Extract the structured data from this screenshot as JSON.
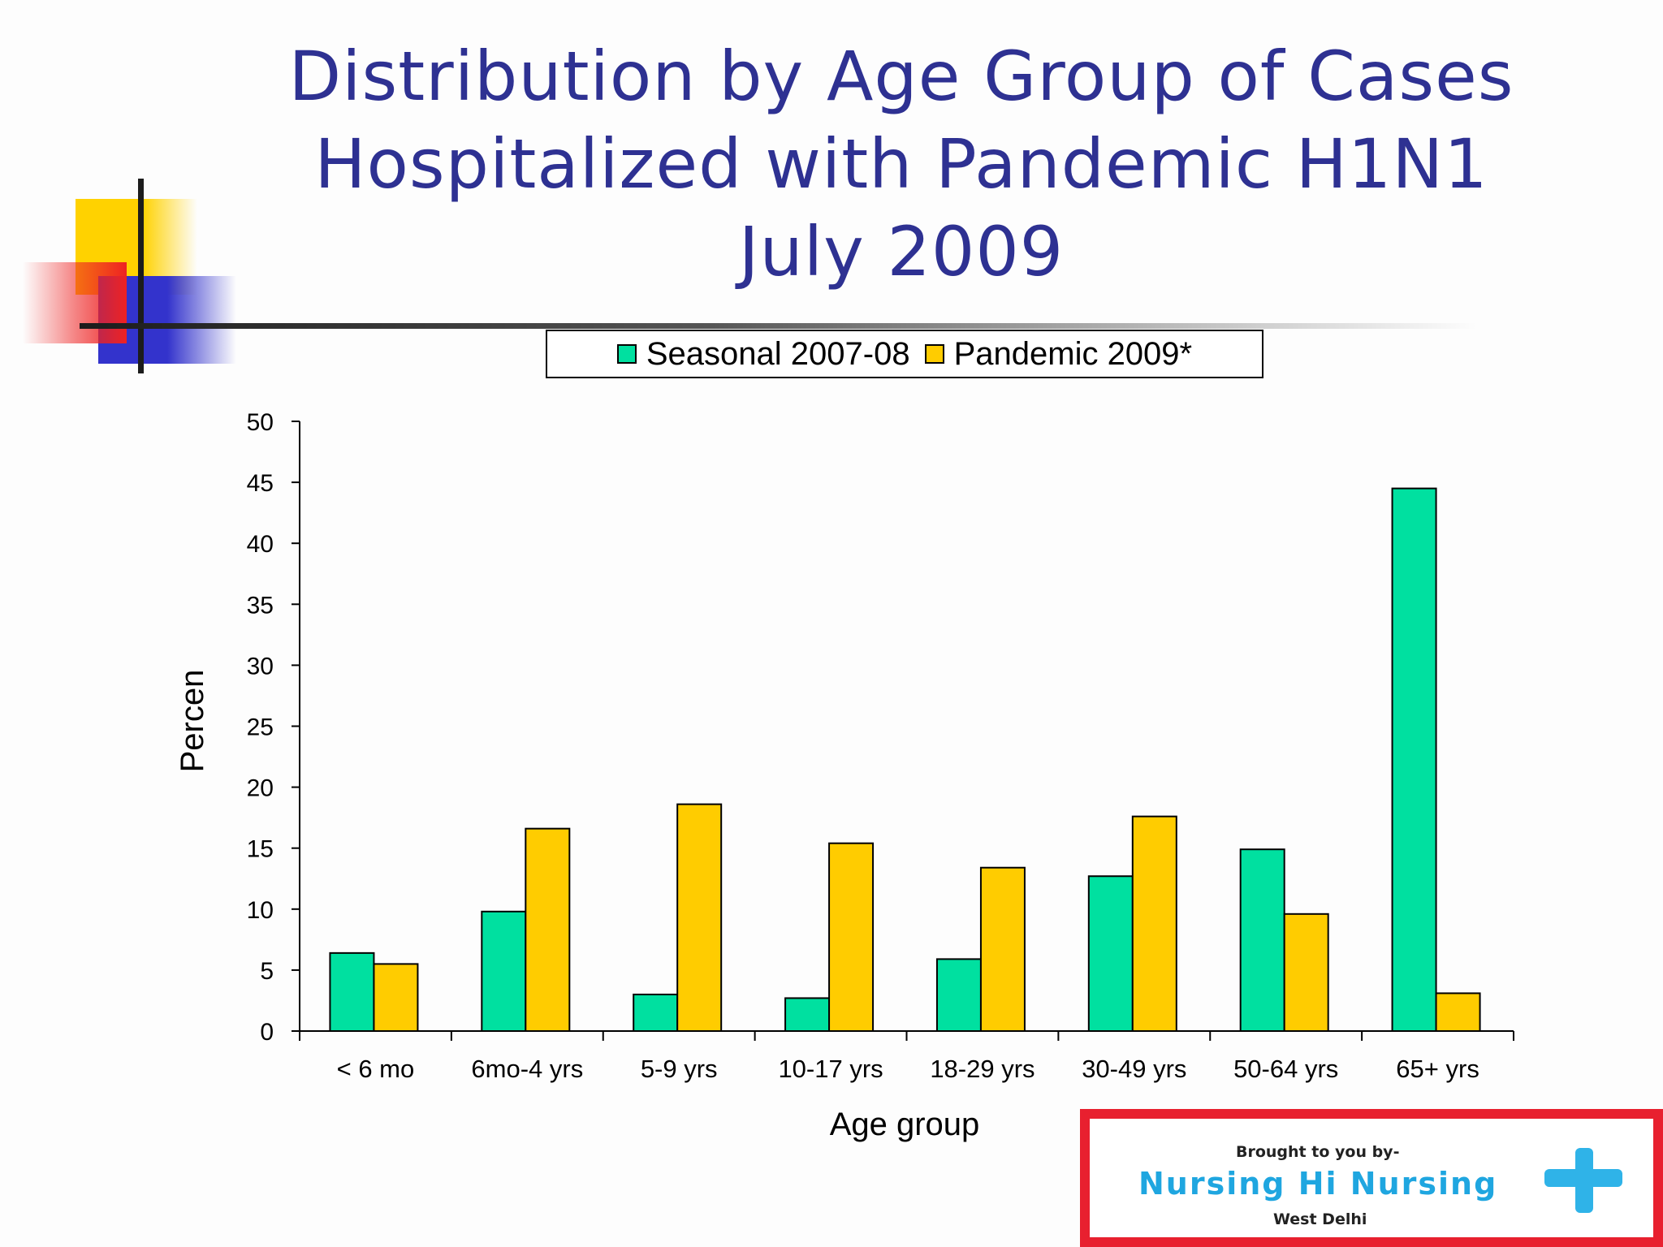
{
  "title": {
    "line1": "Distribution by Age Group of Cases",
    "line2": "Hospitalized with Pandemic H1N1",
    "line3": "July 2009"
  },
  "colors": {
    "seasonal": "#00e0a0",
    "pandemic": "#ffcc00",
    "title": "#2e3192",
    "credit_border": "#e8202f",
    "credit_text": "#1fa6e0"
  },
  "chart_data": {
    "type": "bar",
    "title": "",
    "xlabel": "Age group",
    "ylabel": "Percen",
    "ylim": [
      0,
      50
    ],
    "yticks": [
      0,
      5,
      10,
      15,
      20,
      25,
      30,
      35,
      40,
      45,
      50
    ],
    "categories": [
      "< 6 mo",
      "6mo-4 yrs",
      "5-9 yrs",
      "10-17 yrs",
      "18-29 yrs",
      "30-49 yrs",
      "50-64 yrs",
      "65+ yrs"
    ],
    "series": [
      {
        "name": "Seasonal 2007-08",
        "values": [
          6.4,
          9.8,
          3.0,
          2.7,
          5.9,
          12.7,
          14.9,
          44.5
        ]
      },
      {
        "name": "Pandemic 2009*",
        "values": [
          5.5,
          16.6,
          18.6,
          15.4,
          13.4,
          17.6,
          9.6,
          3.1
        ]
      }
    ],
    "legend_position": "top-center",
    "grid": false
  },
  "credit": {
    "top": "Brought to you by-",
    "name": "Nursing Hi Nursing",
    "sub": "West Delhi"
  }
}
